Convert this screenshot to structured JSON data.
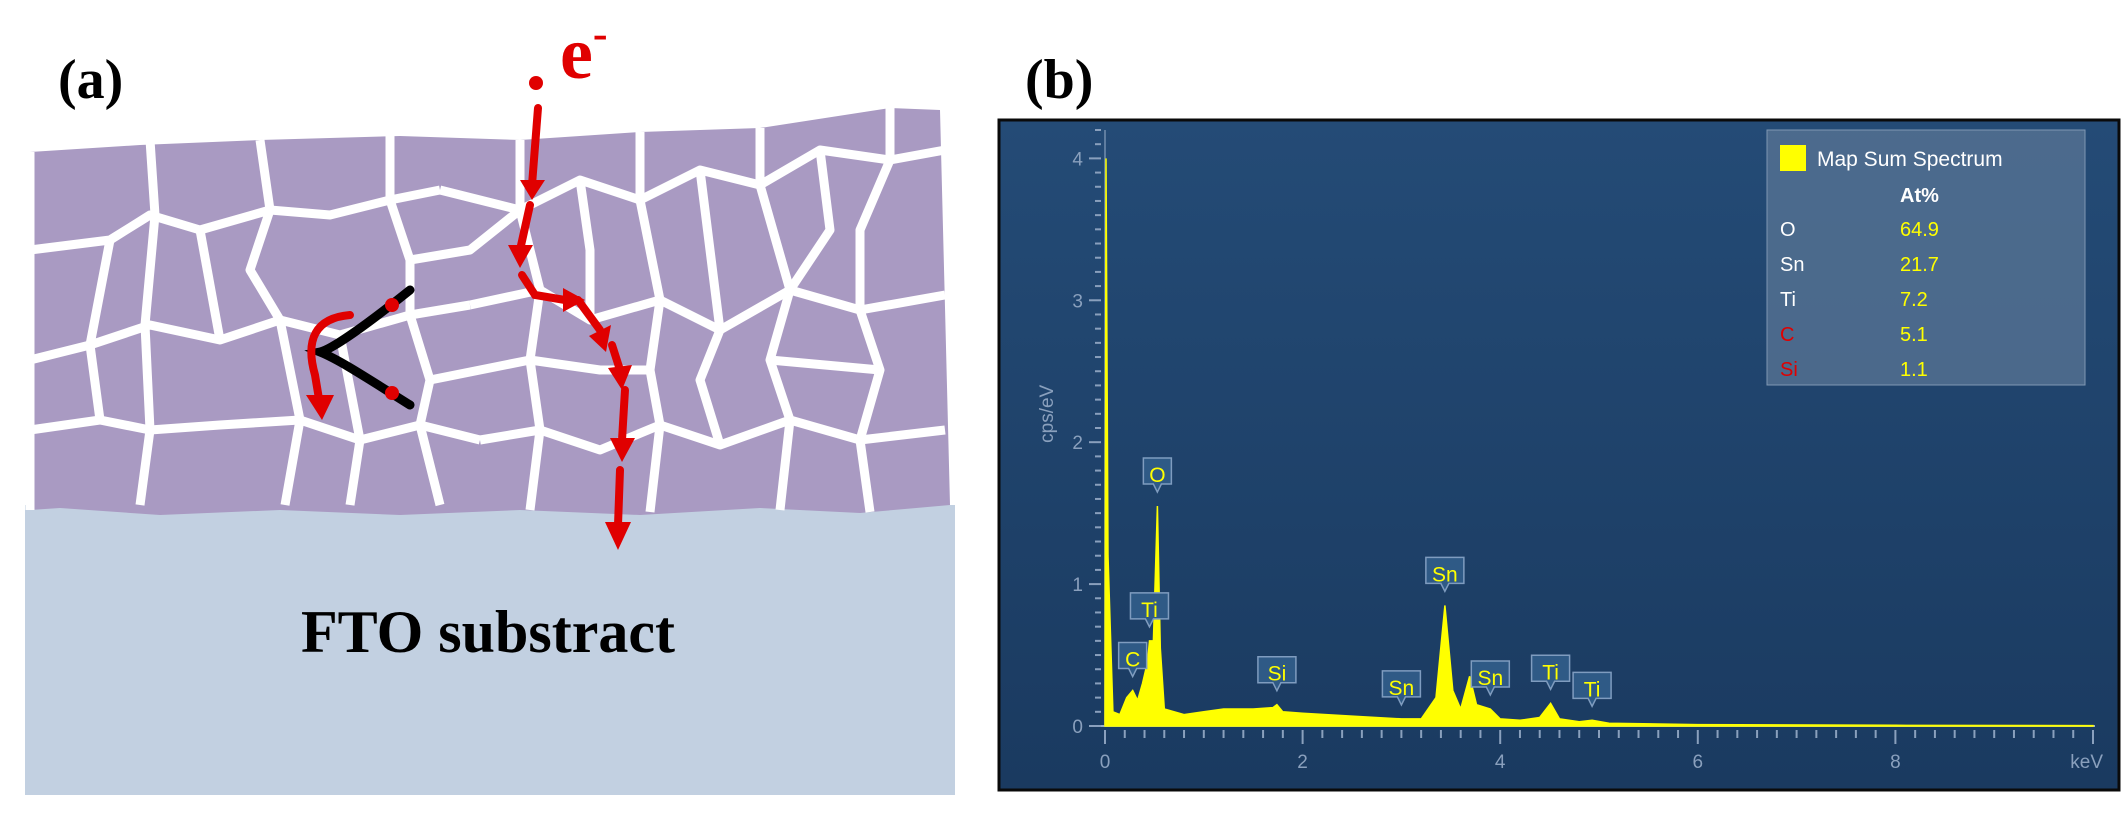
{
  "panel_a": {
    "label": "(a)",
    "electron_label": "e",
    "electron_sup": "-",
    "substrate_label": "FTO substract"
  },
  "panel_b": {
    "label": "(b)",
    "legend": {
      "title": "Map Sum Spectrum",
      "column_header": "At%",
      "swatch_color": "#ffff00",
      "rows": [
        {
          "element": "O",
          "value": "64.9",
          "color": "#ffffff"
        },
        {
          "element": "Sn",
          "value": "21.7",
          "color": "#ffffff"
        },
        {
          "element": "Ti",
          "value": "7.2",
          "color": "#ffffff"
        },
        {
          "element": "C",
          "value": "5.1",
          "color": "#e00000"
        },
        {
          "element": "Si",
          "value": "1.1",
          "color": "#e00000"
        }
      ]
    }
  },
  "chart_data": {
    "type": "area",
    "xlabel": "keV",
    "ylabel": "cps/eV",
    "xlim": [
      0,
      10
    ],
    "ylim": [
      0,
      4.2
    ],
    "xticks": [
      "0",
      "2",
      "4",
      "6",
      "8"
    ],
    "yticks": [
      "0",
      "1",
      "2",
      "3",
      "4"
    ],
    "series_color": "#ffff00",
    "peaks": [
      {
        "label": "C",
        "x": 0.28,
        "y": 0.25
      },
      {
        "label": "Ti",
        "x": 0.45,
        "y": 0.6
      },
      {
        "label": "O",
        "x": 0.53,
        "y": 1.55
      },
      {
        "label": "Si",
        "x": 1.74,
        "y": 0.15
      },
      {
        "label": "Sn",
        "x": 3.0,
        "y": 0.05
      },
      {
        "label": "Sn",
        "x": 3.44,
        "y": 0.85
      },
      {
        "label": "Sn",
        "x": 3.9,
        "y": 0.12
      },
      {
        "label": "Ti",
        "x": 4.51,
        "y": 0.16
      },
      {
        "label": "Ti",
        "x": 4.93,
        "y": 0.04
      }
    ],
    "spectrum": [
      [
        0,
        0
      ],
      [
        0.01,
        4.0
      ],
      [
        0.03,
        1.2
      ],
      [
        0.08,
        0.1
      ],
      [
        0.15,
        0.08
      ],
      [
        0.22,
        0.2
      ],
      [
        0.28,
        0.25
      ],
      [
        0.33,
        0.18
      ],
      [
        0.38,
        0.3
      ],
      [
        0.43,
        0.45
      ],
      [
        0.45,
        0.6
      ],
      [
        0.49,
        0.6
      ],
      [
        0.53,
        1.55
      ],
      [
        0.56,
        0.55
      ],
      [
        0.6,
        0.12
      ],
      [
        0.8,
        0.08
      ],
      [
        1.0,
        0.1
      ],
      [
        1.2,
        0.12
      ],
      [
        1.5,
        0.12
      ],
      [
        1.7,
        0.13
      ],
      [
        1.74,
        0.15
      ],
      [
        1.8,
        0.1
      ],
      [
        2.0,
        0.09
      ],
      [
        2.5,
        0.07
      ],
      [
        3.0,
        0.05
      ],
      [
        3.2,
        0.05
      ],
      [
        3.35,
        0.2
      ],
      [
        3.44,
        0.85
      ],
      [
        3.52,
        0.25
      ],
      [
        3.6,
        0.12
      ],
      [
        3.69,
        0.35
      ],
      [
        3.76,
        0.15
      ],
      [
        3.9,
        0.12
      ],
      [
        4.0,
        0.05
      ],
      [
        4.2,
        0.04
      ],
      [
        4.4,
        0.06
      ],
      [
        4.51,
        0.16
      ],
      [
        4.6,
        0.05
      ],
      [
        4.8,
        0.03
      ],
      [
        4.93,
        0.04
      ],
      [
        5.1,
        0.02
      ],
      [
        6,
        0.01
      ],
      [
        8,
        0.005
      ],
      [
        10,
        0.003
      ]
    ]
  }
}
